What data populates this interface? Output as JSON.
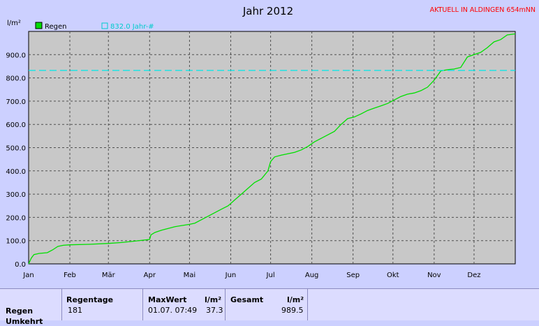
{
  "chart_data": {
    "type": "line",
    "title": "Jahr 2012",
    "ylabel": "l/m²",
    "ylim": [
      0,
      1000
    ],
    "yticks": [
      "0.0",
      "100.0",
      "200.0",
      "300.0",
      "400.0",
      "500.0",
      "600.0",
      "700.0",
      "800.0",
      "900.0"
    ],
    "xticks": [
      "Jan",
      "Feb",
      "Mär",
      "Apr",
      "Mai",
      "Jun",
      "Jul",
      "Aug",
      "Sep",
      "Okt",
      "Nov",
      "Dez"
    ],
    "xlim": [
      0,
      366
    ],
    "grid": true,
    "legend_position": "top-left",
    "series": [
      {
        "name": "Regen",
        "color": "#00e000",
        "x": [
          0,
          2,
          4,
          8,
          14,
          18,
          22,
          26,
          31,
          45,
          60,
          70,
          80,
          91,
          92,
          95,
          100,
          110,
          121,
          125,
          130,
          135,
          140,
          145,
          150,
          155,
          160,
          165,
          170,
          175,
          180,
          182,
          185,
          190,
          200,
          205,
          210,
          215,
          220,
          225,
          230,
          235,
          240,
          245,
          250,
          255,
          260,
          265,
          270,
          275,
          280,
          285,
          290,
          295,
          300,
          305,
          310,
          315,
          316,
          320,
          325,
          330,
          335,
          340,
          345,
          350,
          355,
          360,
          366
        ],
        "values": [
          0,
          25,
          40,
          45,
          48,
          60,
          75,
          80,
          82,
          84,
          88,
          92,
          98,
          105,
          125,
          135,
          145,
          160,
          170,
          175,
          190,
          205,
          220,
          235,
          250,
          275,
          300,
          325,
          350,
          365,
          400,
          440,
          460,
          468,
          480,
          490,
          505,
          525,
          540,
          555,
          570,
          600,
          625,
          632,
          645,
          660,
          670,
          680,
          690,
          705,
          720,
          730,
          735,
          745,
          760,
          790,
          830,
          835,
          836,
          838,
          845,
          890,
          900,
          910,
          930,
          955,
          965,
          985,
          989.5
        ]
      },
      {
        "name": "832.0 Jahr-#",
        "color": "#00e8e8",
        "style": "dashed",
        "x": [
          0,
          366
        ],
        "values": [
          832.0,
          832.0
        ]
      }
    ]
  },
  "header": {
    "station": "AKTUELL IN ALDINGEN 654mNN"
  },
  "legend": {
    "regen": "Regen",
    "mean": "832.0 Jahr-#"
  },
  "stats": {
    "row_label": "Regen",
    "row_label_2": "Umkehrt",
    "regentage_label": "Regentage",
    "regentage_value": "181",
    "maxwert_label": "MaxWert",
    "maxwert_unit": "l/m²",
    "maxwert_date": "01.07. 07:49",
    "maxwert_value": "37.3",
    "gesamt_label": "Gesamt",
    "gesamt_unit": "l/m²",
    "gesamt_value": "989.5"
  }
}
